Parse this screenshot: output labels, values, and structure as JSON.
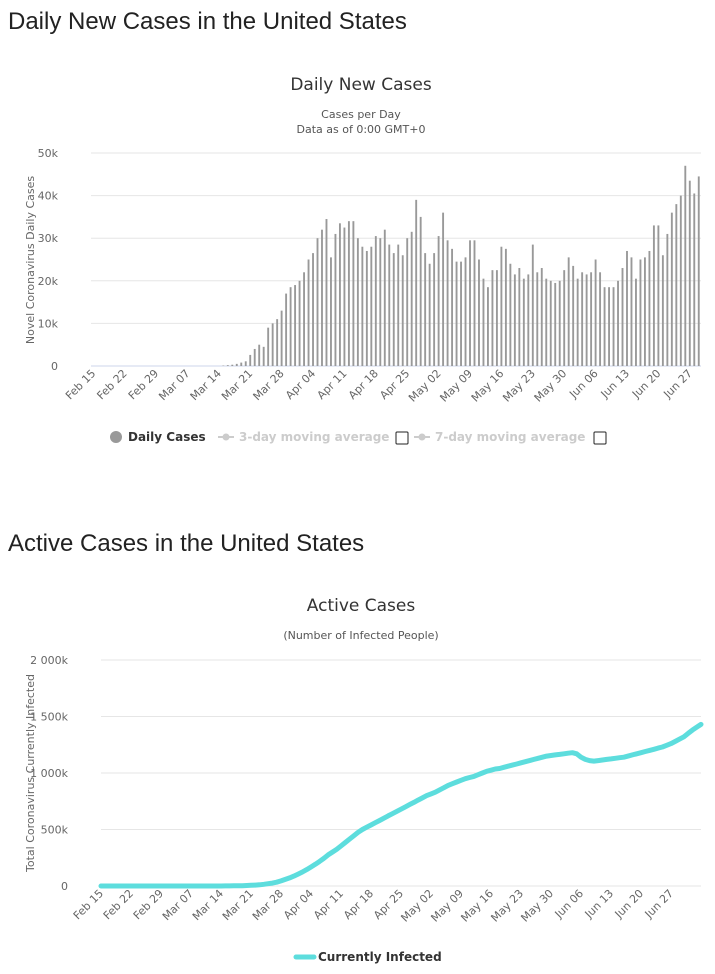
{
  "sections": {
    "daily_heading": "Daily New Cases in the United States",
    "active_heading": "Active Cases in the United States"
  },
  "colors": {
    "bar": "#999999",
    "line": "#5ddddd",
    "legend_off": "#cccccc"
  },
  "chart_data": [
    {
      "type": "bar",
      "title": "Daily New Cases",
      "subtitle": "Cases per Day",
      "subtitle2": "Data as of 0:00 GMT+0",
      "xlabel": "",
      "ylabel": "Novel Coronavirus Daily Cases",
      "ylim": [
        0,
        50000
      ],
      "yticks": [
        0,
        10000,
        20000,
        30000,
        40000,
        50000
      ],
      "ytick_labels": [
        "0",
        "10k",
        "20k",
        "30k",
        "40k",
        "50k"
      ],
      "xtick_labels": [
        "Feb 15",
        "Feb 22",
        "Feb 29",
        "Mar 07",
        "Mar 14",
        "Mar 21",
        "Mar 28",
        "Apr 04",
        "Apr 11",
        "Apr 18",
        "Apr 25",
        "May 02",
        "May 09",
        "May 16",
        "May 23",
        "May 30",
        "Jun 06",
        "Jun 13",
        "Jun 20",
        "Jun 27"
      ],
      "start_date": "Feb 15",
      "legend": [
        {
          "label": "Daily Cases",
          "enabled": true
        },
        {
          "label": "3-day moving average",
          "enabled": false
        },
        {
          "label": "7-day moving average",
          "enabled": false
        }
      ],
      "series": [
        {
          "name": "Daily Cases",
          "values": [
            0,
            0,
            0,
            0,
            0,
            0,
            0,
            0,
            0,
            0,
            0,
            0,
            0,
            0,
            0,
            0,
            0,
            0,
            0,
            0,
            0,
            0,
            0,
            0,
            0,
            0,
            0,
            0,
            0,
            100,
            200,
            300,
            500,
            800,
            1100,
            2600,
            4000,
            5000,
            4500,
            9000,
            10000,
            11000,
            13000,
            17000,
            18500,
            19000,
            20000,
            22000,
            25000,
            26500,
            30000,
            32000,
            34500,
            25500,
            31000,
            33500,
            32500,
            34000,
            34000,
            30000,
            28000,
            27000,
            28000,
            30500,
            30000,
            32000,
            28500,
            26500,
            28500,
            26000,
            30000,
            31500,
            39000,
            35000,
            26500,
            24000,
            26500,
            30500,
            36000,
            29500,
            27500,
            24500,
            24500,
            25500,
            29500,
            29500,
            25000,
            20500,
            18500,
            22500,
            22500,
            28000,
            27500,
            24000,
            21500,
            23000,
            20500,
            21500,
            28500,
            22000,
            23000,
            20500,
            20000,
            19500,
            20000,
            22500,
            25500,
            23500,
            20500,
            22000,
            21500,
            22000,
            25000,
            22000,
            18500,
            18500,
            18500,
            20000,
            23000,
            27000,
            25500,
            20500,
            25000,
            25500,
            27000,
            33000,
            33000,
            26000,
            31000,
            36000,
            38000,
            40000,
            47000,
            43500,
            40500,
            44500
          ]
        }
      ]
    },
    {
      "type": "line",
      "title": "Active Cases",
      "subtitle": "(Number of Infected People)",
      "xlabel": "",
      "ylabel": "Total Coronavirus Currently Infected",
      "ylim": [
        0,
        2000000
      ],
      "yticks": [
        0,
        500000,
        1000000,
        1500000,
        2000000
      ],
      "ytick_labels": [
        "0",
        "500k",
        "1 000k",
        "1 500k",
        "2 000k"
      ],
      "xtick_labels": [
        "Feb 15",
        "Feb 22",
        "Feb 29",
        "Mar 07",
        "Mar 14",
        "Mar 21",
        "Mar 28",
        "Apr 04",
        "Apr 11",
        "Apr 18",
        "Apr 25",
        "May 02",
        "May 09",
        "May 16",
        "May 23",
        "May 30",
        "Jun 06",
        "Jun 13",
        "Jun 20",
        "Jun 27"
      ],
      "start_date": "Feb 15",
      "legend": [
        {
          "label": "Currently Infected",
          "enabled": true
        }
      ],
      "series": [
        {
          "name": "Currently Infected",
          "values": [
            0,
            0,
            0,
            0,
            0,
            0,
            0,
            0,
            0,
            0,
            0,
            0,
            0,
            0,
            0,
            0,
            0,
            0,
            0,
            0,
            0,
            0,
            0,
            0,
            0,
            0,
            0,
            0,
            0,
            500,
            1000,
            1500,
            2000,
            3000,
            4000,
            6000,
            8000,
            11000,
            15000,
            20000,
            26000,
            34000,
            45000,
            58000,
            72000,
            88000,
            105000,
            124000,
            145000,
            168000,
            192000,
            218000,
            245000,
            275000,
            300000,
            325000,
            355000,
            385000,
            415000,
            445000,
            475000,
            500000,
            520000,
            540000,
            560000,
            580000,
            600000,
            620000,
            640000,
            660000,
            680000,
            700000,
            720000,
            740000,
            760000,
            780000,
            800000,
            815000,
            830000,
            850000,
            870000,
            890000,
            905000,
            920000,
            935000,
            950000,
            960000,
            970000,
            985000,
            1000000,
            1015000,
            1025000,
            1035000,
            1040000,
            1050000,
            1060000,
            1070000,
            1080000,
            1090000,
            1100000,
            1110000,
            1120000,
            1130000,
            1140000,
            1150000,
            1155000,
            1160000,
            1165000,
            1170000,
            1175000,
            1180000,
            1170000,
            1140000,
            1120000,
            1110000,
            1105000,
            1110000,
            1115000,
            1120000,
            1125000,
            1130000,
            1135000,
            1140000,
            1150000,
            1160000,
            1170000,
            1180000,
            1190000,
            1200000,
            1210000,
            1220000,
            1230000,
            1245000,
            1260000,
            1280000,
            1300000,
            1320000,
            1350000,
            1380000,
            1405000,
            1430000
          ]
        }
      ]
    }
  ]
}
